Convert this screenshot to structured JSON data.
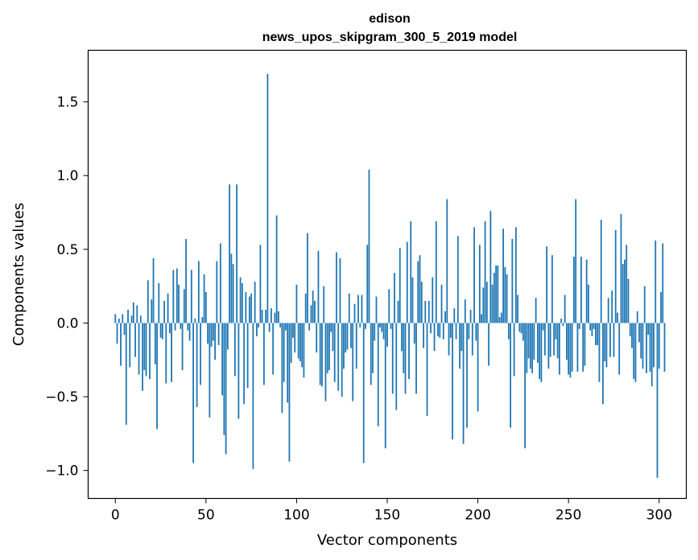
{
  "chart_data": {
    "type": "bar",
    "title": "edison",
    "subtitle": "news_upos_skipgram_300_5_2019 model",
    "xlabel": "Vector components",
    "ylabel": "Components values",
    "xlim": [
      -15,
      315
    ],
    "ylim": [
      -1.19,
      1.85
    ],
    "xticks": [
      0,
      50,
      100,
      150,
      200,
      250,
      300
    ],
    "xtick_labels": [
      "0",
      "50",
      "100",
      "150",
      "200",
      "250",
      "300"
    ],
    "yticks": [
      -1.0,
      -0.5,
      0.0,
      0.5,
      1.0,
      1.5
    ],
    "ytick_labels": [
      "−1.0",
      "−0.5",
      "0.0",
      "0.5",
      "1.0",
      "1.5"
    ],
    "bar_color": "#1f77b4",
    "grid": false,
    "values": [
      0.06,
      -0.14,
      0.03,
      -0.29,
      0.06,
      -0.08,
      -0.69,
      0.09,
      -0.3,
      0.05,
      0.14,
      -0.23,
      0.12,
      -0.35,
      0.05,
      -0.46,
      -0.32,
      -0.36,
      0.29,
      -0.38,
      0.16,
      0.44,
      -0.28,
      -0.72,
      0.27,
      -0.1,
      -0.11,
      0.15,
      -0.41,
      0.2,
      -0.07,
      -0.4,
      0.36,
      -0.05,
      0.37,
      0.26,
      -0.04,
      -0.32,
      0.23,
      0.57,
      -0.05,
      -0.12,
      0.36,
      -0.95,
      0.03,
      -0.57,
      0.42,
      -0.42,
      0.04,
      0.33,
      0.21,
      -0.14,
      -0.64,
      -0.16,
      -0.12,
      -0.25,
      0.42,
      -0.15,
      0.54,
      -0.49,
      -0.76,
      -0.89,
      -0.18,
      0.94,
      0.47,
      0.4,
      -0.36,
      0.94,
      -0.65,
      0.31,
      0.27,
      -0.55,
      0.21,
      -0.44,
      0.18,
      0.2,
      -0.99,
      0.28,
      -0.09,
      -0.03,
      0.53,
      0.09,
      -0.42,
      0.09,
      1.69,
      -0.06,
      0.1,
      -0.35,
      0.07,
      0.73,
      0.08,
      -0.03,
      -0.61,
      -0.4,
      -0.05,
      -0.54,
      -0.94,
      -0.27,
      -0.1,
      -0.2,
      0.26,
      -0.24,
      -0.26,
      -0.3,
      -0.37,
      0.2,
      0.61,
      -0.05,
      0.12,
      0.22,
      0.15,
      -0.2,
      0.49,
      -0.42,
      -0.43,
      0.25,
      -0.53,
      -0.34,
      -0.32,
      -0.06,
      -0.19,
      -0.4,
      0.48,
      -0.46,
      0.44,
      -0.5,
      -0.31,
      -0.2,
      -0.18,
      0.2,
      -0.17,
      -0.53,
      0.13,
      -0.31,
      0.19,
      -0.03,
      0.19,
      -0.95,
      -0.04,
      0.53,
      1.04,
      -0.42,
      -0.34,
      -0.12,
      0.18,
      -0.7,
      -0.03,
      -0.06,
      -0.11,
      -0.85,
      -0.16,
      0.23,
      -0.04,
      -0.48,
      0.34,
      -0.59,
      0.15,
      0.51,
      -0.19,
      -0.34,
      -0.48,
      0.55,
      -0.38,
      0.69,
      0.31,
      -0.14,
      -0.48,
      0.42,
      0.46,
      0.28,
      -0.17,
      0.15,
      -0.63,
      0.15,
      -0.07,
      0.31,
      -0.19,
      0.69,
      -0.09,
      -0.1,
      0.26,
      -0.11,
      0.08,
      0.84,
      -0.22,
      -0.1,
      -0.79,
      0.1,
      -0.11,
      0.59,
      -0.31,
      -0.19,
      -0.82,
      0.16,
      -0.71,
      -0.11,
      0.09,
      -0.22,
      0.65,
      -0.12,
      -0.6,
      0.53,
      0.06,
      0.24,
      0.69,
      0.28,
      -0.29,
      0.76,
      0.26,
      0.34,
      0.39,
      0.39,
      0.04,
      0.07,
      0.64,
      0.38,
      0.33,
      -0.11,
      -0.71,
      0.57,
      -0.36,
      0.65,
      0.19,
      -0.06,
      -0.07,
      -0.12,
      -0.85,
      -0.34,
      -0.24,
      -0.31,
      -0.34,
      -0.25,
      0.17,
      -0.27,
      -0.38,
      -0.4,
      -0.05,
      -0.22,
      0.52,
      -0.31,
      -0.23,
      0.46,
      -0.22,
      -0.11,
      -0.24,
      -0.35,
      0.03,
      -0.02,
      0.19,
      -0.25,
      -0.35,
      -0.37,
      -0.33,
      0.45,
      0.84,
      -0.33,
      -0.04,
      0.45,
      -0.33,
      -0.29,
      0.43,
      0.26,
      -0.05,
      -0.09,
      -0.04,
      -0.15,
      -0.15,
      -0.4,
      0.7,
      -0.55,
      -0.26,
      -0.3,
      0.17,
      -0.23,
      0.22,
      -0.23,
      0.63,
      0.07,
      -0.35,
      0.74,
      0.4,
      0.43,
      0.53,
      0.3,
      -0.09,
      -0.17,
      -0.38,
      -0.4,
      0.08,
      -0.13,
      -0.24,
      -0.31,
      0.25,
      -0.34,
      -0.08,
      -0.33,
      -0.43,
      -0.3,
      0.56,
      -1.05,
      -0.31,
      0.21,
      0.54,
      -0.33
    ]
  }
}
